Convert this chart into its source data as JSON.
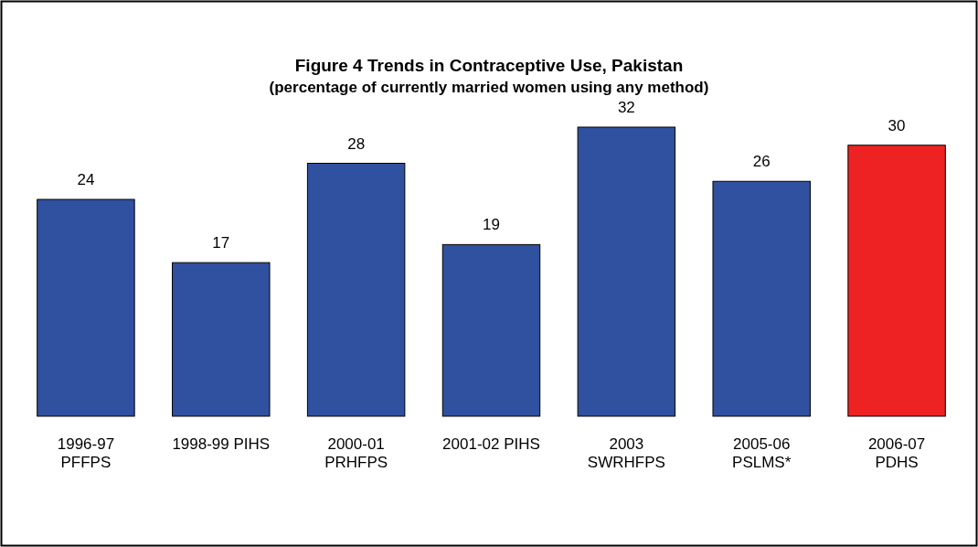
{
  "chart_data": {
    "type": "bar",
    "title": "Figure 4 Trends in Contraceptive Use, Pakistan",
    "subtitle": "(percentage of currently married women using any method)",
    "categories": [
      "1996-97\nPFFPS",
      "1998-99 PIHS",
      "2000-01\nPRHFPS",
      "2001-02 PIHS",
      "2003\nSWRHFPS",
      "2005-06\nPSLMS*",
      "2006-07\nPDHS"
    ],
    "values": [
      24,
      17,
      28,
      19,
      32,
      26,
      30
    ],
    "colors": [
      "#3050a0",
      "#3050a0",
      "#3050a0",
      "#3050a0",
      "#3050a0",
      "#3050a0",
      "#ee2222"
    ],
    "data_labels": true
  }
}
